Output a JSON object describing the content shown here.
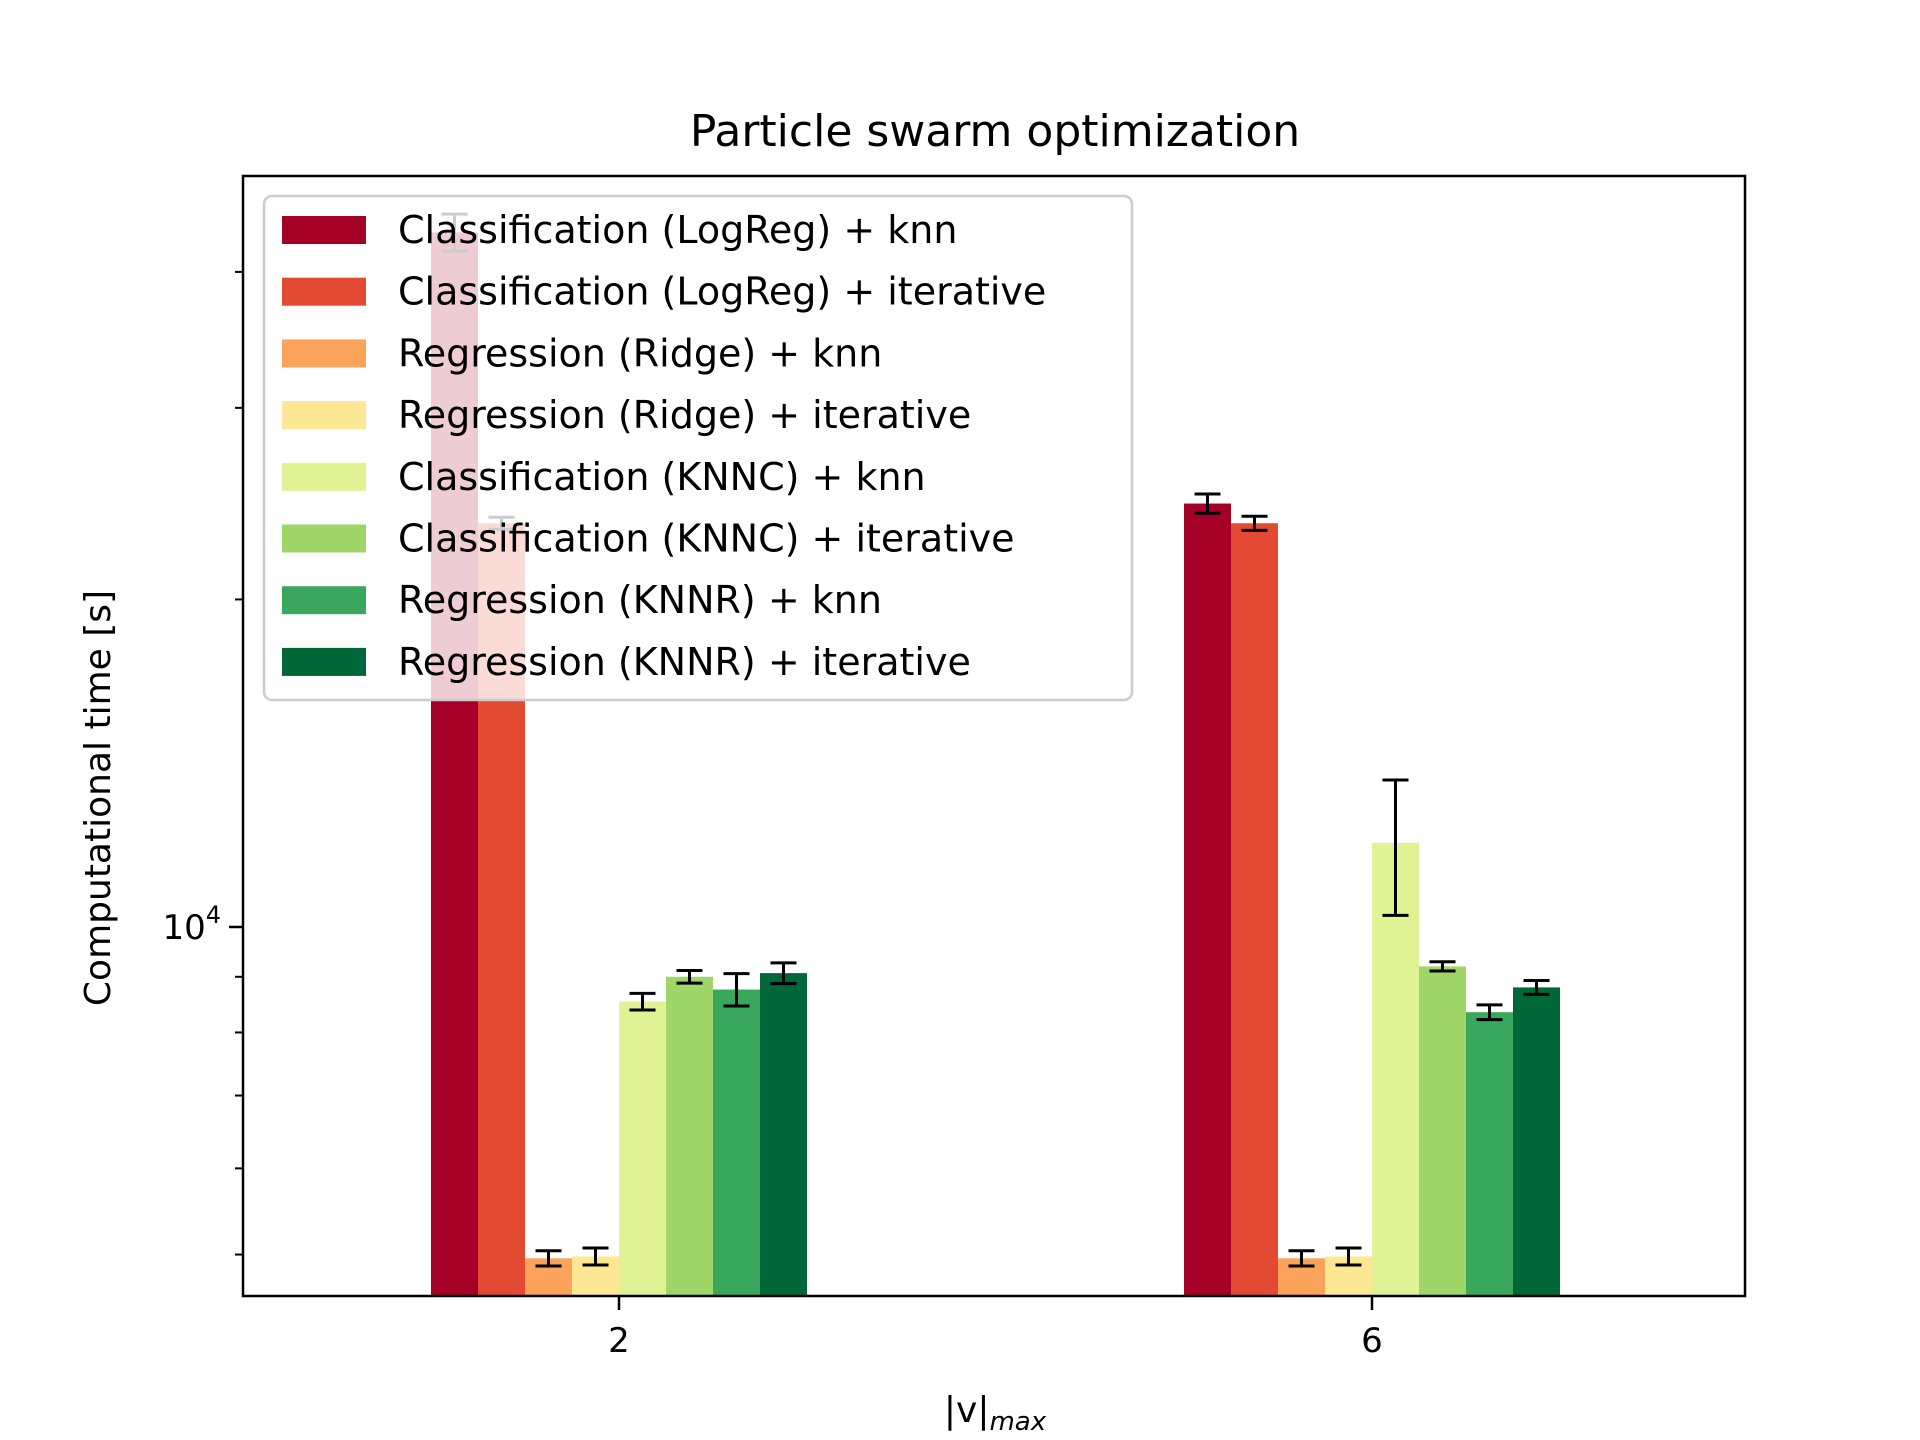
{
  "chart_data": {
    "type": "bar",
    "title": "Particle swarm optimization",
    "xlabel": "|v|",
    "xlabel_subscript": "max",
    "ylabel": "Computational time [s]",
    "yscale": "log",
    "ylim": [
      4580,
      49000
    ],
    "y_major_tick": {
      "value": 10000,
      "base": "10",
      "exponent": "4"
    },
    "categories": [
      "2",
      "6"
    ],
    "legend_position": "upper-left",
    "grid": false,
    "series": [
      {
        "name": "Classification (LogReg) + knn",
        "color": "#a50026",
        "values": [
          43500,
          24500
        ],
        "errors": [
          1700,
          500
        ]
      },
      {
        "name": "Classification (LogReg) + iterative",
        "color": "#e34a33",
        "values": [
          23500,
          23500
        ],
        "errors": [
          300,
          350
        ]
      },
      {
        "name": "Regression (Ridge) + knn",
        "color": "#fca35b",
        "values": [
          4960,
          4960
        ],
        "errors": [
          80,
          80
        ]
      },
      {
        "name": "Regression (Ridge) + iterative",
        "color": "#fee793",
        "values": [
          4980,
          4980
        ],
        "errors": [
          90,
          90
        ]
      },
      {
        "name": "Classification (KNNC) + knn",
        "color": "#e0f293",
        "values": [
          8540,
          11950
        ],
        "errors": [
          150,
          1700
        ]
      },
      {
        "name": "Classification (KNNC) + iterative",
        "color": "#9fd668",
        "values": [
          9000,
          9200
        ],
        "errors": [
          120,
          90
        ]
      },
      {
        "name": "Regression (KNNR) + knn",
        "color": "#3aa85c",
        "values": [
          8760,
          8350
        ],
        "errors": [
          300,
          130
        ]
      },
      {
        "name": "Regression (KNNR) + iterative",
        "color": "#006838",
        "values": [
          9070,
          8800
        ],
        "errors": [
          200,
          130
        ]
      }
    ]
  }
}
